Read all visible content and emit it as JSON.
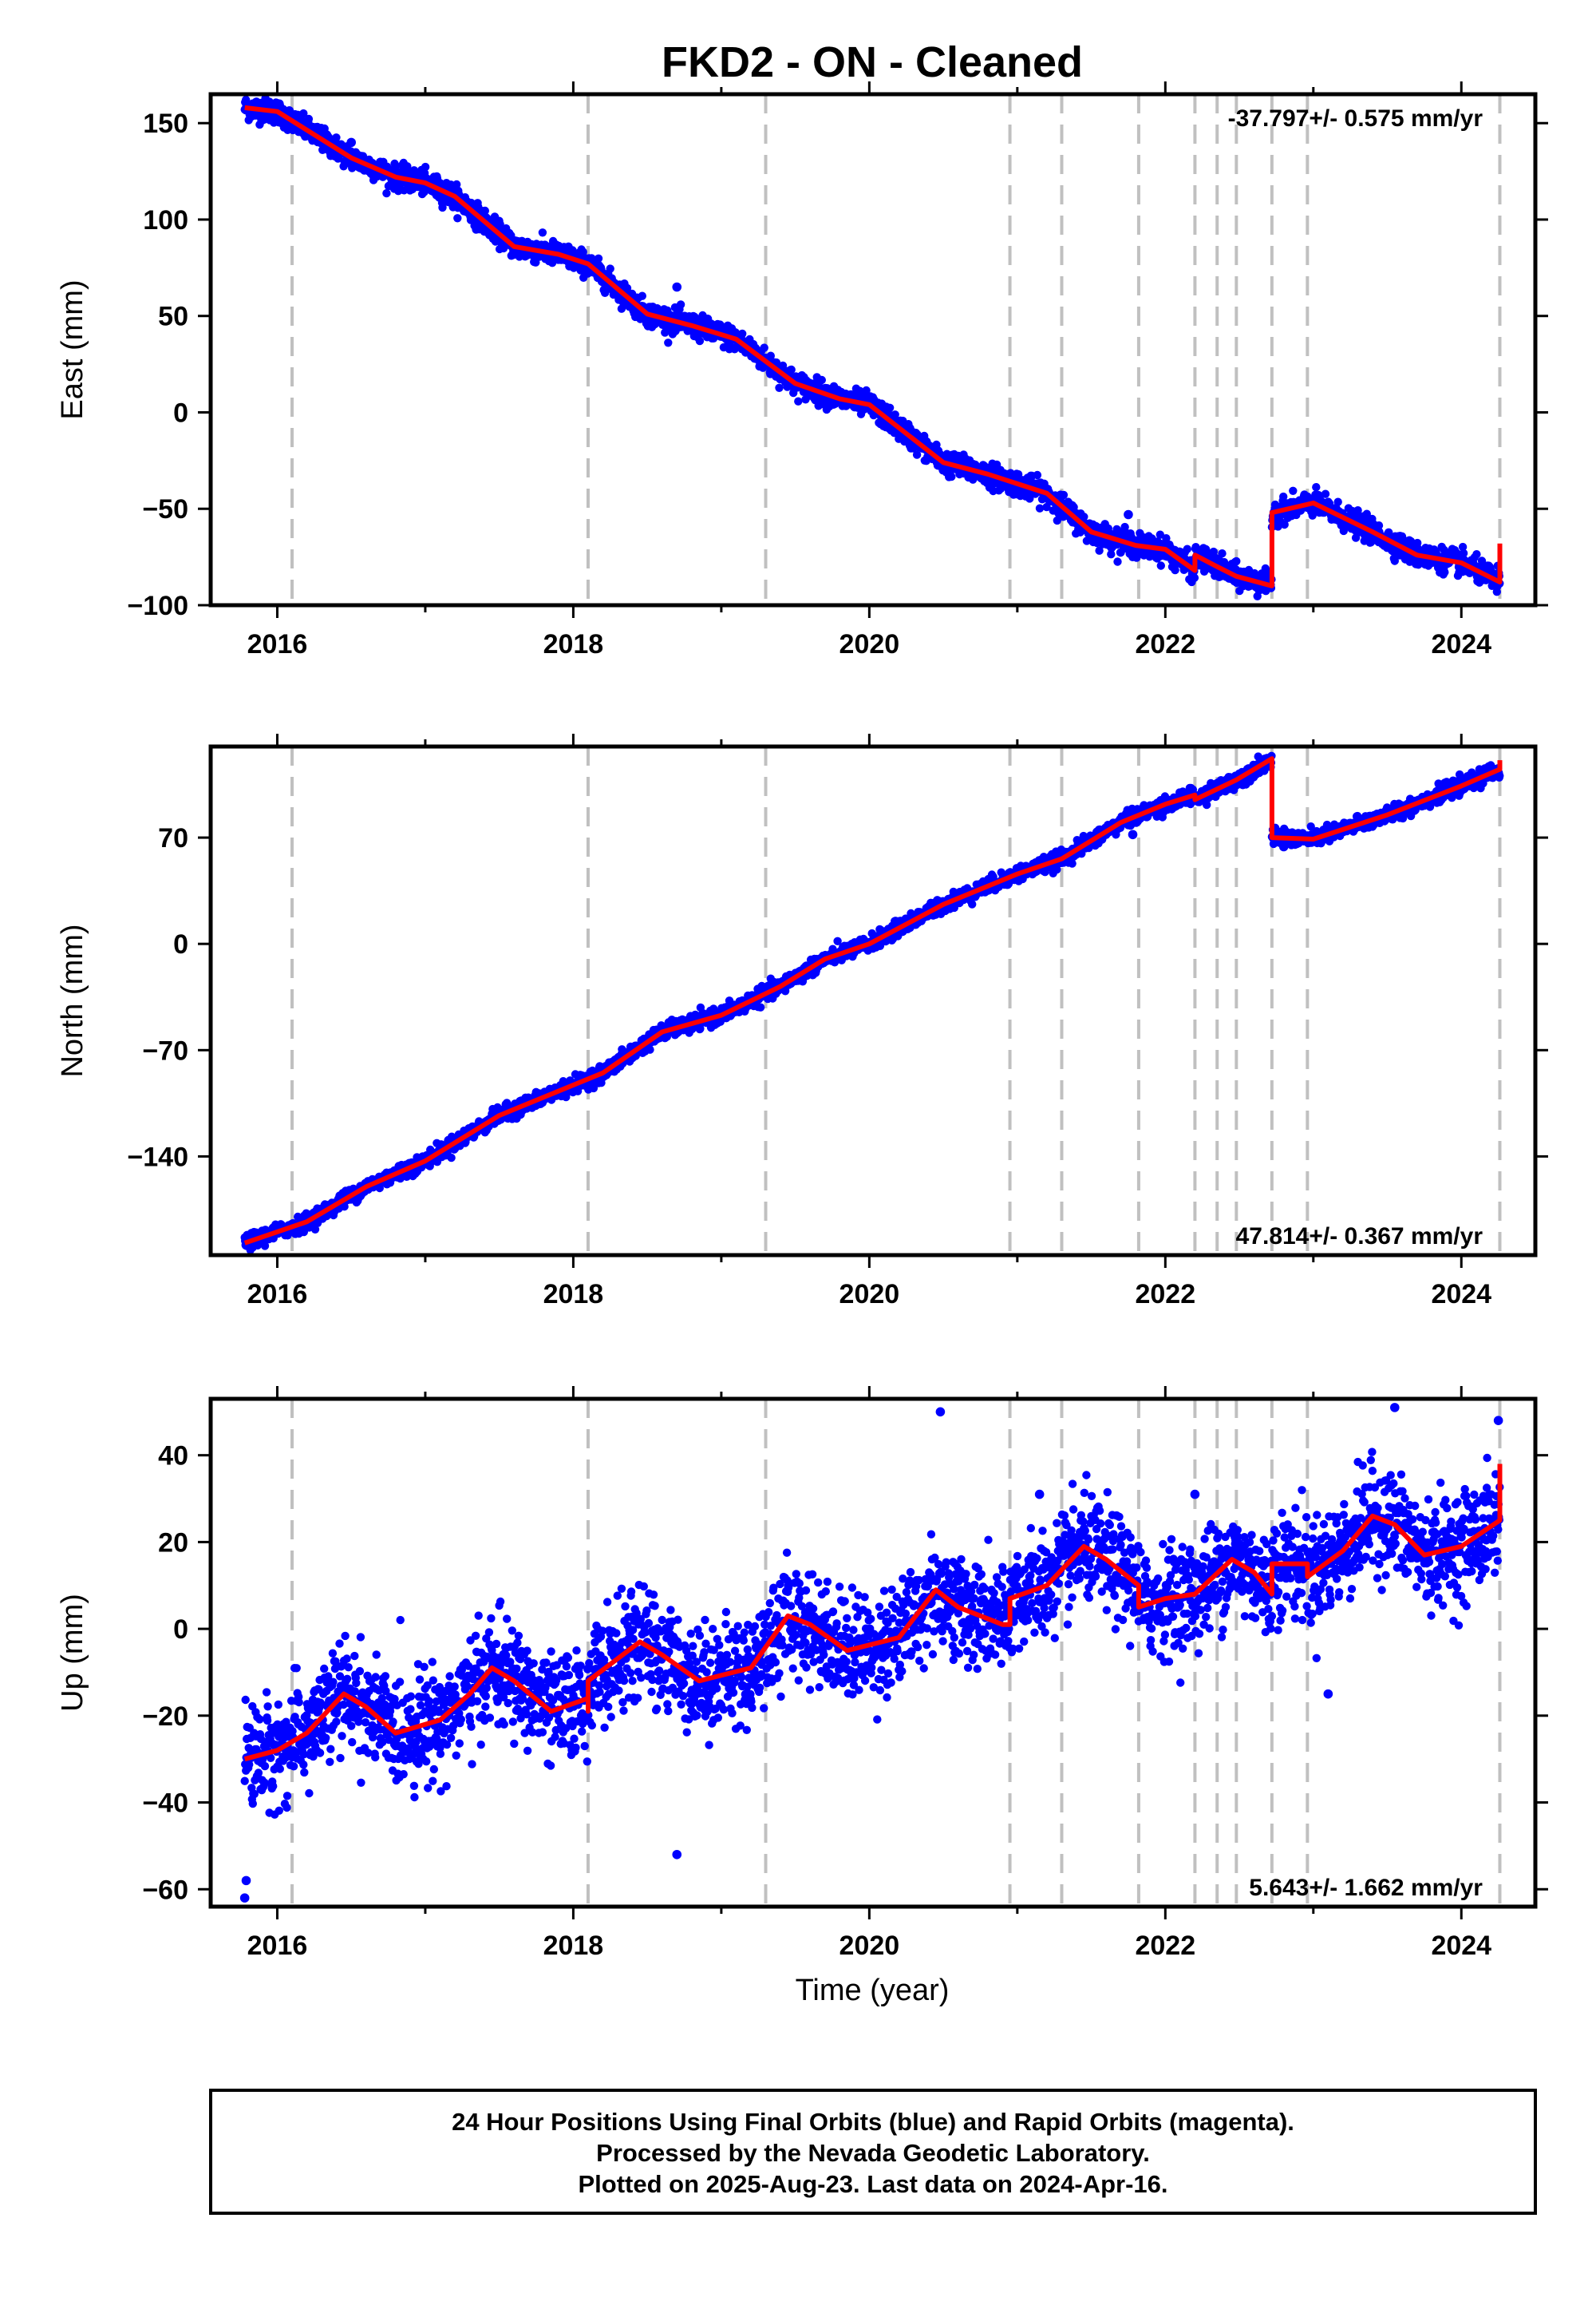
{
  "title": "FKD2  - ON - Cleaned",
  "colors": {
    "points": "#0000ff",
    "model": "#ff0000",
    "event_lines": "#c0c0c0",
    "frame": "#000000"
  },
  "event_years": [
    2016.1,
    2018.1,
    2019.3,
    2020.95,
    2021.3,
    2021.82,
    2022.2,
    2022.35,
    2022.48,
    2022.72,
    2022.96,
    2024.26
  ],
  "x_ticks": [
    "2016",
    "2018",
    "2020",
    "2022",
    "2024"
  ],
  "xlabel": "Time (year)",
  "footer": {
    "line1": "24 Hour Positions Using Final Orbits (blue) and Rapid Orbits (magenta).",
    "line2": "Processed by the Nevada Geodetic Laboratory.",
    "line3": "Plotted on 2025-Aug-23. Last data on 2024-Apr-16."
  },
  "chart_data": [
    {
      "type": "scatter",
      "ylabel": "East (mm)",
      "rate_label": "-37.797+/- 0.575 mm/yr",
      "xlim": [
        2015.55,
        2024.5
      ],
      "ylim": [
        -100,
        165
      ],
      "y_ticks": [
        {
          "v": 150,
          "t": "150"
        },
        {
          "v": 100,
          "t": "100"
        },
        {
          "v": 50,
          "t": "50"
        },
        {
          "v": 0,
          "t": "0"
        },
        {
          "v": -50,
          "t": "−50"
        },
        {
          "v": -100,
          "t": "−100"
        }
      ],
      "model": [
        [
          2015.78,
          158
        ],
        [
          2016.0,
          156
        ],
        [
          2016.5,
          132
        ],
        [
          2016.8,
          122
        ],
        [
          2017.0,
          119
        ],
        [
          2017.2,
          112
        ],
        [
          2017.6,
          86
        ],
        [
          2017.9,
          82
        ],
        [
          2018.1,
          77
        ],
        [
          2018.5,
          51
        ],
        [
          2018.8,
          45
        ],
        [
          2019.1,
          38
        ],
        [
          2019.5,
          15
        ],
        [
          2019.8,
          7
        ],
        [
          2020.0,
          4
        ],
        [
          2020.5,
          -26
        ],
        [
          2020.8,
          -32
        ],
        [
          2021.2,
          -42
        ],
        [
          2021.5,
          -62
        ],
        [
          2021.8,
          -69
        ],
        [
          2022.0,
          -71
        ],
        [
          2022.2,
          -82
        ],
        [
          2022.2,
          -74
        ],
        [
          2022.35,
          -80
        ],
        [
          2022.48,
          -85
        ],
        [
          2022.72,
          -90
        ],
        [
          2022.72,
          -52
        ],
        [
          2023.0,
          -47
        ],
        [
          2023.4,
          -62
        ],
        [
          2023.7,
          -74
        ],
        [
          2024.0,
          -78
        ],
        [
          2024.26,
          -88
        ],
        [
          2024.26,
          -68
        ]
      ],
      "noise": 3,
      "outliers": [
        [
          2018.7,
          65
        ],
        [
          2021.75,
          -53
        ],
        [
          2016.5,
          140
        ],
        [
          2015.97,
          155
        ]
      ]
    },
    {
      "type": "scatter",
      "ylabel": "North (mm)",
      "rate_label": "47.814+/- 0.367 mm/yr",
      "xlim": [
        2015.55,
        2024.5
      ],
      "ylim": [
        -205,
        130
      ],
      "y_ticks": [
        {
          "v": 70,
          "t": "70"
        },
        {
          "v": 0,
          "t": "0"
        },
        {
          "v": -70,
          "t": "−70"
        },
        {
          "v": -140,
          "t": "−140"
        }
      ],
      "model": [
        [
          2015.78,
          -197
        ],
        [
          2016.2,
          -183
        ],
        [
          2016.6,
          -160
        ],
        [
          2017.0,
          -143
        ],
        [
          2017.5,
          -113
        ],
        [
          2018.0,
          -93
        ],
        [
          2018.2,
          -85
        ],
        [
          2018.6,
          -58
        ],
        [
          2019.0,
          -47
        ],
        [
          2019.4,
          -28
        ],
        [
          2019.7,
          -10
        ],
        [
          2020.0,
          0
        ],
        [
          2020.5,
          26
        ],
        [
          2021.0,
          46
        ],
        [
          2021.3,
          56
        ],
        [
          2021.7,
          80
        ],
        [
          2022.0,
          92
        ],
        [
          2022.2,
          98
        ],
        [
          2022.2,
          95
        ],
        [
          2022.48,
          108
        ],
        [
          2022.72,
          122
        ],
        [
          2022.72,
          70
        ],
        [
          2023.0,
          69
        ],
        [
          2023.5,
          85
        ],
        [
          2024.0,
          104
        ],
        [
          2024.26,
          115
        ],
        [
          2024.26,
          121
        ]
      ],
      "noise": 2.5,
      "outliers": [
        [
          2021.78,
          72
        ],
        [
          2022.8,
          64
        ]
      ]
    },
    {
      "type": "scatter",
      "ylabel": "Up (mm)",
      "rate_label": "5.643+/- 1.662 mm/yr",
      "xlim": [
        2015.55,
        2024.5
      ],
      "ylim": [
        -64,
        53
      ],
      "y_ticks": [
        {
          "v": 40,
          "t": "40"
        },
        {
          "v": 20,
          "t": "20"
        },
        {
          "v": 0,
          "t": "0"
        },
        {
          "v": -20,
          "t": "−20"
        },
        {
          "v": -40,
          "t": "−40"
        },
        {
          "v": -60,
          "t": "−60"
        }
      ],
      "model": [
        [
          2015.78,
          -30
        ],
        [
          2016.0,
          -28
        ],
        [
          2016.2,
          -24
        ],
        [
          2016.45,
          -15
        ],
        [
          2016.6,
          -18
        ],
        [
          2016.8,
          -24
        ],
        [
          2017.1,
          -21
        ],
        [
          2017.3,
          -15
        ],
        [
          2017.45,
          -9
        ],
        [
          2017.6,
          -12
        ],
        [
          2017.85,
          -19
        ],
        [
          2018.1,
          -16
        ],
        [
          2018.1,
          -19
        ],
        [
          2018.1,
          -12
        ],
        [
          2018.45,
          -3
        ],
        [
          2018.6,
          -6
        ],
        [
          2018.85,
          -12
        ],
        [
          2019.2,
          -9
        ],
        [
          2019.45,
          3
        ],
        [
          2019.6,
          1
        ],
        [
          2019.85,
          -5
        ],
        [
          2020.2,
          -2
        ],
        [
          2020.45,
          9
        ],
        [
          2020.6,
          5
        ],
        [
          2020.9,
          1
        ],
        [
          2020.95,
          1
        ],
        [
          2020.95,
          7
        ],
        [
          2021.2,
          10
        ],
        [
          2021.45,
          19
        ],
        [
          2021.6,
          16
        ],
        [
          2021.82,
          10
        ],
        [
          2021.82,
          5
        ],
        [
          2022.0,
          7
        ],
        [
          2022.2,
          8
        ],
        [
          2022.45,
          16
        ],
        [
          2022.6,
          13
        ],
        [
          2022.72,
          8
        ],
        [
          2022.72,
          15
        ],
        [
          2022.96,
          15
        ],
        [
          2022.96,
          12
        ],
        [
          2023.2,
          18
        ],
        [
          2023.4,
          26
        ],
        [
          2023.55,
          24
        ],
        [
          2023.75,
          17
        ],
        [
          2024.0,
          19
        ],
        [
          2024.26,
          25
        ],
        [
          2024.26,
          38
        ]
      ],
      "noise": 6,
      "outliers": [
        [
          2020.48,
          50
        ],
        [
          2018.7,
          -52
        ],
        [
          2015.78,
          -62
        ],
        [
          2015.79,
          -58
        ],
        [
          2023.55,
          51
        ],
        [
          2024.25,
          48
        ],
        [
          2022.2,
          31
        ],
        [
          2023.1,
          -15
        ],
        [
          2021.15,
          31
        ]
      ]
    }
  ]
}
